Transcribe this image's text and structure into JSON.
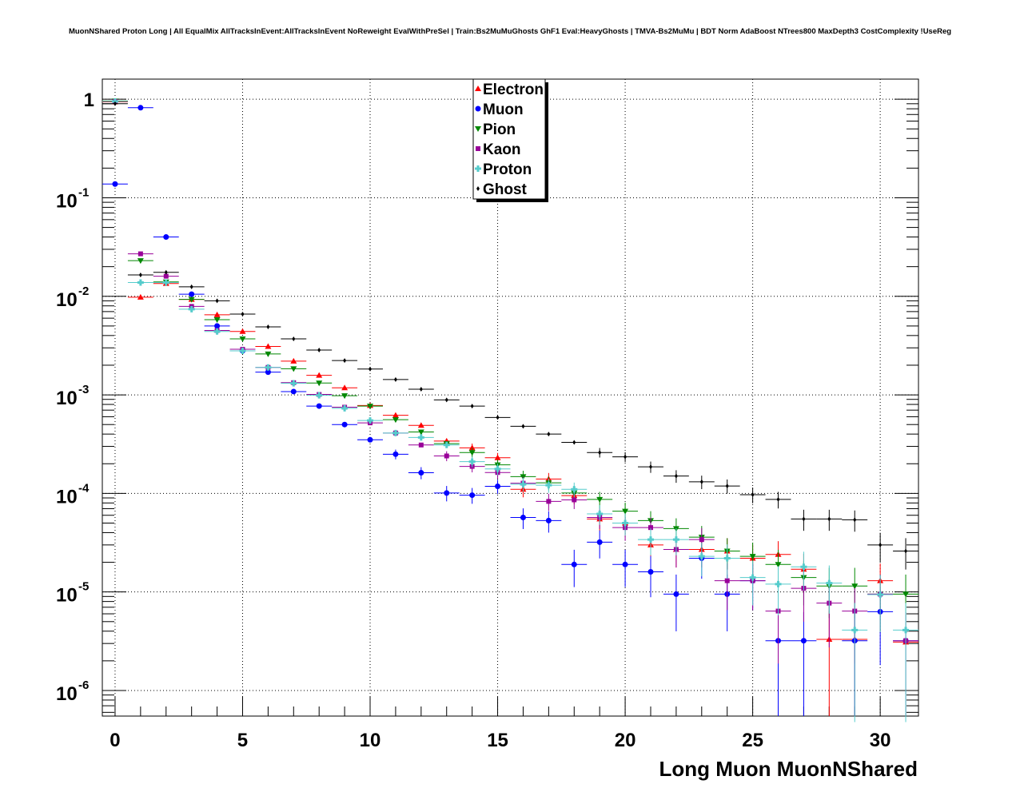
{
  "chart_data": {
    "type": "scatter",
    "title": "MuonNShared Proton Long | All EqualMix AllTracksInEvent:AllTracksInEvent NoReweight EvalWithPreSel | Train:Bs2MuMuGhosts GhF1 Eval:HeavyGhosts | TMVA-Bs2MuMu | BDT Norm AdaBoost NTrees800 MaxDepth3 CostComplexity !UseReg",
    "xlabel": "Long Muon MuonNShared",
    "ylabel": "",
    "xlim": [
      -0.5,
      31.5
    ],
    "ylim": [
      5.5e-07,
      1.6
    ],
    "yscale": "log",
    "grid": true,
    "legend_position": "top-center",
    "x_ticks": [
      "0",
      "5",
      "10",
      "15",
      "20",
      "25",
      "30"
    ],
    "y_ticks": [
      {
        "base": "1",
        "exp": ""
      },
      {
        "base": "10",
        "exp": "-1"
      },
      {
        "base": "10",
        "exp": "-2"
      },
      {
        "base": "10",
        "exp": "-3"
      },
      {
        "base": "10",
        "exp": "-4"
      },
      {
        "base": "10",
        "exp": "-5"
      },
      {
        "base": "10",
        "exp": "-6"
      }
    ],
    "series": [
      {
        "name": "Electron",
        "color": "#ff0000",
        "marker": "triangle-up",
        "x": [
          0,
          1,
          2,
          3,
          4,
          5,
          6,
          7,
          8,
          9,
          10,
          11,
          12,
          13,
          14,
          15,
          16,
          17,
          18,
          19,
          20,
          21,
          22,
          23,
          24,
          25,
          26,
          27,
          28,
          29,
          30,
          31
        ],
        "y": [
          0.94,
          0.0098,
          0.0135,
          0.0093,
          0.0065,
          0.0044,
          0.0031,
          0.0022,
          0.00158,
          0.00118,
          0.00078,
          0.00062,
          0.00049,
          0.00034,
          0.00029,
          0.00023,
          0.00011,
          0.00014,
          9.5e-05,
          5.5e-05,
          5e-05,
          3e-05,
          2.7e-05,
          2.7e-05,
          2.6e-05,
          2.2e-05,
          2.4e-05,
          1.7e-05,
          3.3e-06,
          3.3e-06,
          1.3e-05,
          3.1e-06
        ]
      },
      {
        "name": "Muon",
        "color": "#0000ff",
        "marker": "circle",
        "x": [
          0,
          1,
          2,
          3,
          4,
          5,
          6,
          7,
          8,
          9,
          10,
          11,
          12,
          13,
          14,
          15,
          16,
          17,
          18,
          19,
          20,
          21,
          22,
          23,
          24,
          25,
          26,
          27,
          28,
          29,
          30,
          31
        ],
        "y": [
          0.138,
          0.82,
          0.04,
          0.0105,
          0.005,
          0.0028,
          0.0017,
          0.00108,
          0.00077,
          0.0005,
          0.00035,
          0.00025,
          0.000162,
          0.000101,
          9.6e-05,
          0.000118,
          5.7e-05,
          5.3e-05,
          1.9e-05,
          3.2e-05,
          1.9e-05,
          1.6e-05,
          9.5e-06,
          2.2e-05,
          9.5e-06,
          1.3e-05,
          3.2e-06,
          3.2e-06,
          null,
          3.2e-06,
          6.3e-06,
          3.2e-06
        ]
      },
      {
        "name": "Pion",
        "color": "#008800",
        "marker": "triangle-down",
        "x": [
          0,
          1,
          2,
          3,
          4,
          5,
          6,
          7,
          8,
          9,
          10,
          11,
          12,
          13,
          14,
          15,
          16,
          17,
          18,
          19,
          20,
          21,
          22,
          23,
          24,
          25,
          26,
          27,
          28,
          29,
          30,
          31
        ],
        "y": [
          0.96,
          0.023,
          0.014,
          0.0093,
          0.0058,
          0.0037,
          0.0026,
          0.00184,
          0.00132,
          0.00098,
          0.00077,
          0.00056,
          0.00042,
          0.00032,
          0.00026,
          0.000195,
          0.000148,
          0.000128,
          0.000101,
          8.7e-05,
          6.6e-05,
          5.3e-05,
          4.4e-05,
          3.6e-05,
          2.6e-05,
          2.3e-05,
          1.9e-05,
          1.4e-05,
          1.15e-05,
          1.15e-05,
          9.5e-06,
          9.5e-06
        ]
      },
      {
        "name": "Kaon",
        "color": "#990099",
        "marker": "square",
        "x": [
          0,
          1,
          2,
          3,
          4,
          5,
          6,
          7,
          8,
          9,
          10,
          11,
          12,
          13,
          14,
          15,
          16,
          17,
          18,
          19,
          20,
          21,
          22,
          23,
          24,
          25,
          26,
          27,
          28,
          29,
          30,
          31
        ],
        "y": [
          0.95,
          0.027,
          0.016,
          0.0079,
          0.0045,
          0.0029,
          0.0019,
          0.00133,
          0.00101,
          0.00075,
          0.00052,
          0.00041,
          0.00031,
          0.00024,
          0.000188,
          0.000163,
          0.000127,
          8.3e-05,
          8.6e-05,
          5.7e-05,
          4.5e-05,
          4.5e-05,
          2.7e-05,
          3.4e-05,
          1.3e-05,
          1.3e-05,
          6.4e-06,
          1.09e-05,
          7.7e-06,
          6.4e-06,
          9.5e-06,
          3.2e-06
        ]
      },
      {
        "name": "Proton",
        "color": "#55cccc",
        "marker": "cross",
        "x": [
          0,
          1,
          2,
          3,
          4,
          5,
          6,
          7,
          8,
          9,
          10,
          11,
          12,
          13,
          14,
          15,
          16,
          17,
          18,
          19,
          20,
          21,
          22,
          23,
          24,
          25,
          26,
          27,
          28,
          29,
          30,
          31
        ],
        "y": [
          0.95,
          0.0138,
          0.0138,
          0.0074,
          0.0044,
          0.0028,
          0.0019,
          0.00131,
          0.00099,
          0.00073,
          0.00055,
          0.00041,
          0.00037,
          0.00031,
          0.00021,
          0.000177,
          0.000124,
          0.000121,
          0.00011,
          6.2e-05,
          5e-05,
          3.4e-05,
          3.4e-05,
          2.3e-05,
          2.2e-05,
          1.4e-05,
          1.2e-05,
          1.8e-05,
          1.23e-05,
          4.1e-06,
          9.4e-06,
          4.1e-06
        ]
      },
      {
        "name": "Ghost",
        "color": "#000000",
        "marker": "diamond",
        "x": [
          0,
          1,
          2,
          3,
          4,
          5,
          6,
          7,
          8,
          9,
          10,
          11,
          12,
          13,
          14,
          15,
          16,
          17,
          18,
          19,
          20,
          21,
          22,
          23,
          24,
          25,
          26,
          27,
          28,
          29,
          30,
          31
        ],
        "y": [
          0.9,
          0.0165,
          0.0175,
          0.0125,
          0.009,
          0.0066,
          0.0049,
          0.0037,
          0.00285,
          0.00223,
          0.00183,
          0.00143,
          0.00114,
          0.00089,
          0.00077,
          0.00059,
          0.00048,
          0.0004,
          0.00033,
          0.00026,
          0.000235,
          0.000186,
          0.00015,
          0.000131,
          0.000119,
          9.7e-05,
          8.7e-05,
          5.5e-05,
          5.5e-05,
          5.4e-05,
          3e-05,
          2.6e-05
        ]
      }
    ]
  }
}
